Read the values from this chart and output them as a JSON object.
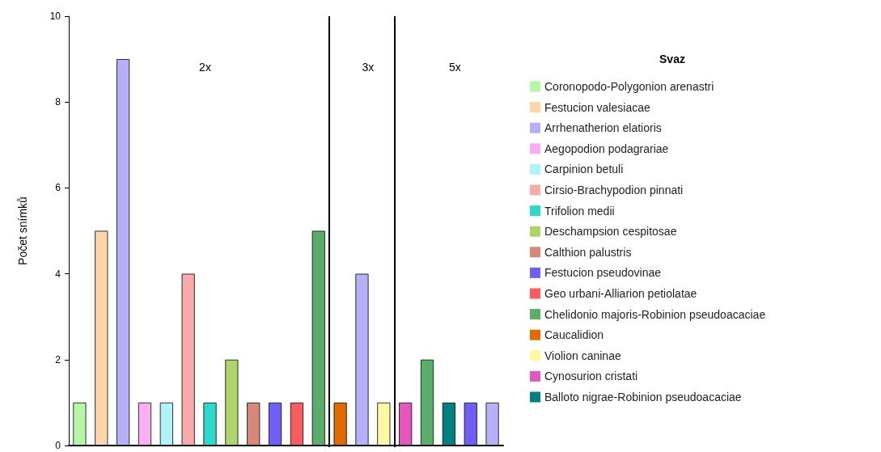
{
  "chart_data": {
    "type": "bar",
    "ylabel": "Počet snímků",
    "legend_title": "Svaz",
    "legend": "right",
    "grid": false,
    "categories": [
      null,
      null,
      null,
      null,
      null,
      null,
      null,
      null,
      null,
      null,
      null,
      null,
      null,
      null,
      null,
      null,
      null,
      null,
      null,
      null
    ],
    "ylim": [
      0,
      10
    ],
    "yticks": [
      0,
      2,
      4,
      6,
      8,
      10
    ],
    "annotations": [
      "2x",
      "3x",
      "5x"
    ],
    "series": [
      {
        "name": "Coronopodo-Polygonion arenastri",
        "color": "#b5f7a5",
        "values": [
          1,
          null,
          null,
          null,
          null,
          null,
          null,
          null,
          null,
          null,
          null,
          null,
          null,
          null,
          null,
          null,
          null,
          null,
          null,
          null
        ]
      },
      {
        "name": "Festucion valesiacae",
        "color": "#fcd5ab",
        "values": [
          null,
          5,
          null,
          null,
          null,
          null,
          null,
          null,
          null,
          null,
          null,
          null,
          null,
          null,
          null,
          null,
          null,
          null,
          null,
          null
        ]
      },
      {
        "name": "Arrhenatherion elatioris",
        "color": "#b5b0f7",
        "values": [
          null,
          null,
          9,
          null,
          null,
          null,
          null,
          null,
          null,
          null,
          null,
          null,
          null,
          4,
          null,
          null,
          null,
          null,
          null,
          1
        ]
      },
      {
        "name": "Aegopodion podagrariae",
        "color": "#f9b0f0",
        "values": [
          null,
          null,
          null,
          1,
          null,
          null,
          null,
          null,
          null,
          null,
          null,
          null,
          null,
          null,
          null,
          null,
          null,
          null,
          null,
          null
        ]
      },
      {
        "name": "Carpinion betuli",
        "color": "#b0f4f7",
        "values": [
          null,
          null,
          null,
          null,
          1,
          null,
          null,
          null,
          null,
          null,
          null,
          null,
          null,
          null,
          null,
          null,
          null,
          null,
          null,
          null
        ]
      },
      {
        "name": "Cirsio-Brachypodion pinnati",
        "color": "#f9abab",
        "values": [
          null,
          null,
          null,
          null,
          null,
          4,
          null,
          null,
          null,
          null,
          null,
          null,
          null,
          null,
          null,
          null,
          null,
          null,
          null,
          null
        ]
      },
      {
        "name": "Trifolion medii",
        "color": "#30d8cc",
        "values": [
          null,
          null,
          null,
          null,
          null,
          null,
          1,
          null,
          null,
          null,
          null,
          null,
          null,
          null,
          null,
          null,
          null,
          null,
          null,
          null
        ]
      },
      {
        "name": "Deschampsion cespitosae",
        "color": "#b0d46c",
        "values": [
          null,
          null,
          null,
          null,
          null,
          null,
          null,
          2,
          null,
          null,
          null,
          null,
          null,
          null,
          null,
          null,
          null,
          null,
          null,
          null
        ]
      },
      {
        "name": "Calthion palustris",
        "color": "#d6887a",
        "values": [
          null,
          null,
          null,
          null,
          null,
          null,
          null,
          null,
          1,
          null,
          null,
          null,
          null,
          null,
          null,
          null,
          null,
          null,
          null,
          null
        ]
      },
      {
        "name": "Festucion pseudovinae",
        "color": "#6f5ff7",
        "values": [
          null,
          null,
          null,
          null,
          null,
          null,
          null,
          null,
          null,
          1,
          null,
          null,
          null,
          null,
          null,
          null,
          null,
          null,
          1,
          null
        ]
      },
      {
        "name": "Geo urbani-Alliarion petiolatae",
        "color": "#f75f5f",
        "values": [
          null,
          null,
          null,
          null,
          null,
          null,
          null,
          null,
          null,
          null,
          1,
          null,
          null,
          null,
          null,
          null,
          null,
          null,
          null,
          null
        ]
      },
      {
        "name": "Chelidonio majoris-Robinion pseudoacaciae",
        "color": "#5aae6a",
        "values": [
          null,
          null,
          null,
          null,
          null,
          null,
          null,
          null,
          null,
          null,
          null,
          5,
          null,
          null,
          null,
          null,
          2,
          null,
          null,
          null
        ]
      },
      {
        "name": "Caucalidion",
        "color": "#e06c00",
        "values": [
          null,
          null,
          null,
          null,
          null,
          null,
          null,
          null,
          null,
          null,
          null,
          null,
          1,
          null,
          null,
          null,
          null,
          null,
          null,
          null
        ]
      },
      {
        "name": "Violion caninae",
        "color": "#fcf8a6",
        "values": [
          null,
          null,
          null,
          null,
          null,
          null,
          null,
          null,
          null,
          null,
          null,
          null,
          null,
          null,
          1,
          null,
          null,
          null,
          null,
          null
        ]
      },
      {
        "name": "Cynosurion cristati",
        "color": "#e657be",
        "values": [
          null,
          null,
          null,
          null,
          null,
          null,
          null,
          null,
          null,
          null,
          null,
          null,
          null,
          null,
          null,
          1,
          null,
          null,
          null,
          null
        ]
      },
      {
        "name": "Balloto nigrae-Robinion pseudoacaciae",
        "color": "#008080",
        "values": [
          null,
          null,
          null,
          null,
          null,
          null,
          null,
          null,
          null,
          null,
          null,
          null,
          null,
          null,
          null,
          null,
          null,
          1,
          null,
          null
        ]
      }
    ]
  }
}
